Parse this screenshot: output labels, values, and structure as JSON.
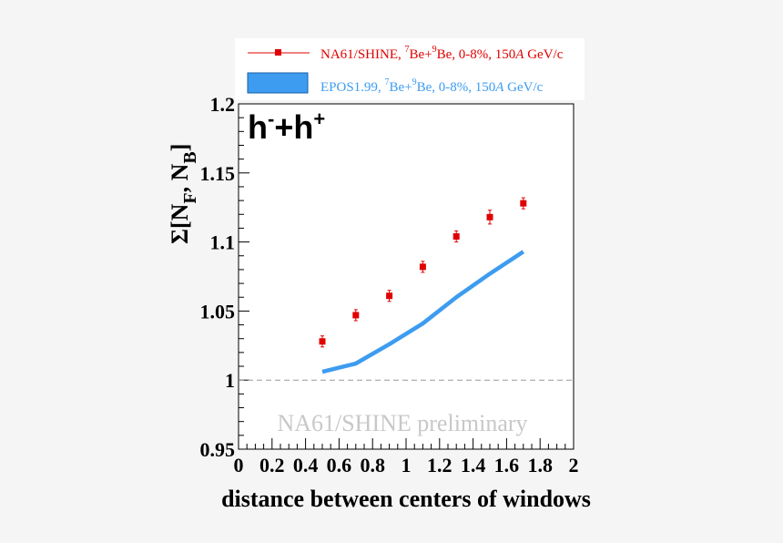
{
  "chart_data": {
    "type": "scatter",
    "title": "",
    "xlabel": "distance between centers of windows",
    "ylabel_prefix": "Σ[N",
    "ylabel_sub1": "F",
    "ylabel_mid": ", N",
    "ylabel_sub2": "B",
    "ylabel_suffix": "]",
    "xlim": [
      0,
      2
    ],
    "ylim": [
      0.95,
      1.2
    ],
    "x_ticks": [
      "0",
      "0.2",
      "0.4",
      "0.6",
      "0.8",
      "1",
      "1.2",
      "1.4",
      "1.6",
      "1.8",
      "2"
    ],
    "y_ticks": [
      "0.95",
      "1",
      "1.05",
      "1.1",
      "1.15",
      "1.2"
    ],
    "grid": false,
    "legend_position": "top",
    "particle_label": {
      "h1": "h",
      "sup1": "-",
      "plus": "+",
      "h2": "h",
      "sup2": "+"
    },
    "watermark": "NA61/SHINE preliminary",
    "reference_line": {
      "y": 1.0,
      "style": "dashed"
    },
    "series": [
      {
        "name_a": "NA61/SHINE,  ",
        "name_sup1": "7",
        "name_b": "Be+",
        "name_sup2": "9",
        "name_c": "Be, 0-8%, 150",
        "name_italic": "A",
        "name_d": " GeV/c",
        "color": "#e00000",
        "kind": "points",
        "x": [
          0.5,
          0.7,
          0.9,
          1.1,
          1.3,
          1.5,
          1.7
        ],
        "y": [
          1.028,
          1.047,
          1.061,
          1.082,
          1.104,
          1.118,
          1.128
        ],
        "err": [
          0.004,
          0.004,
          0.004,
          0.004,
          0.004,
          0.005,
          0.004
        ]
      },
      {
        "name_a": "EPOS1.99,  ",
        "name_sup1": "7",
        "name_b": "Be+",
        "name_sup2": "9",
        "name_c": "Be, 0-8%, 150",
        "name_italic": "A",
        "name_d": " GeV/c",
        "color": "#3d9cf0",
        "kind": "band",
        "x": [
          0.5,
          0.7,
          0.9,
          1.1,
          1.3,
          1.5,
          1.7
        ],
        "y": [
          1.006,
          1.012,
          1.026,
          1.041,
          1.06,
          1.077,
          1.093
        ]
      }
    ]
  }
}
